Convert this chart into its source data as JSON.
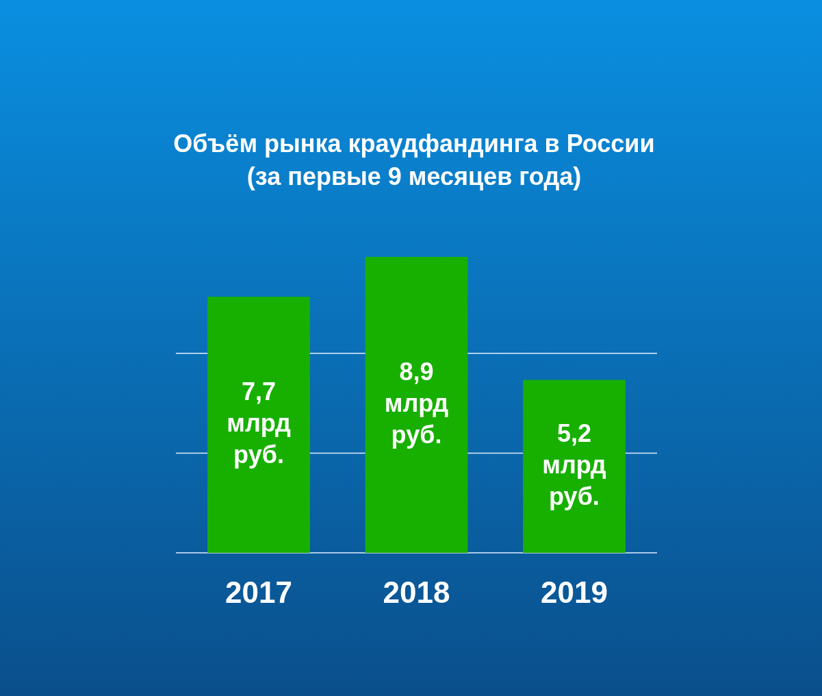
{
  "chart_data": {
    "type": "bar",
    "title": "Объём рынка краудфандинга в России\n(за первые 9 месяцев года)",
    "categories": [
      "2017",
      "2018",
      "2019"
    ],
    "values": [
      7.7,
      8.9,
      5.2
    ],
    "value_labels": [
      "7,7 млрд руб.",
      "8,9 млрд руб.",
      "5,2 млрд руб."
    ],
    "color": "#17b000",
    "ref_lines": [
      {
        "axis": "y",
        "value": 3,
        "color": "#dfefff"
      },
      {
        "axis": "y",
        "value": 6,
        "color": "#dfefff"
      }
    ],
    "tick_labels": "x"
  }
}
